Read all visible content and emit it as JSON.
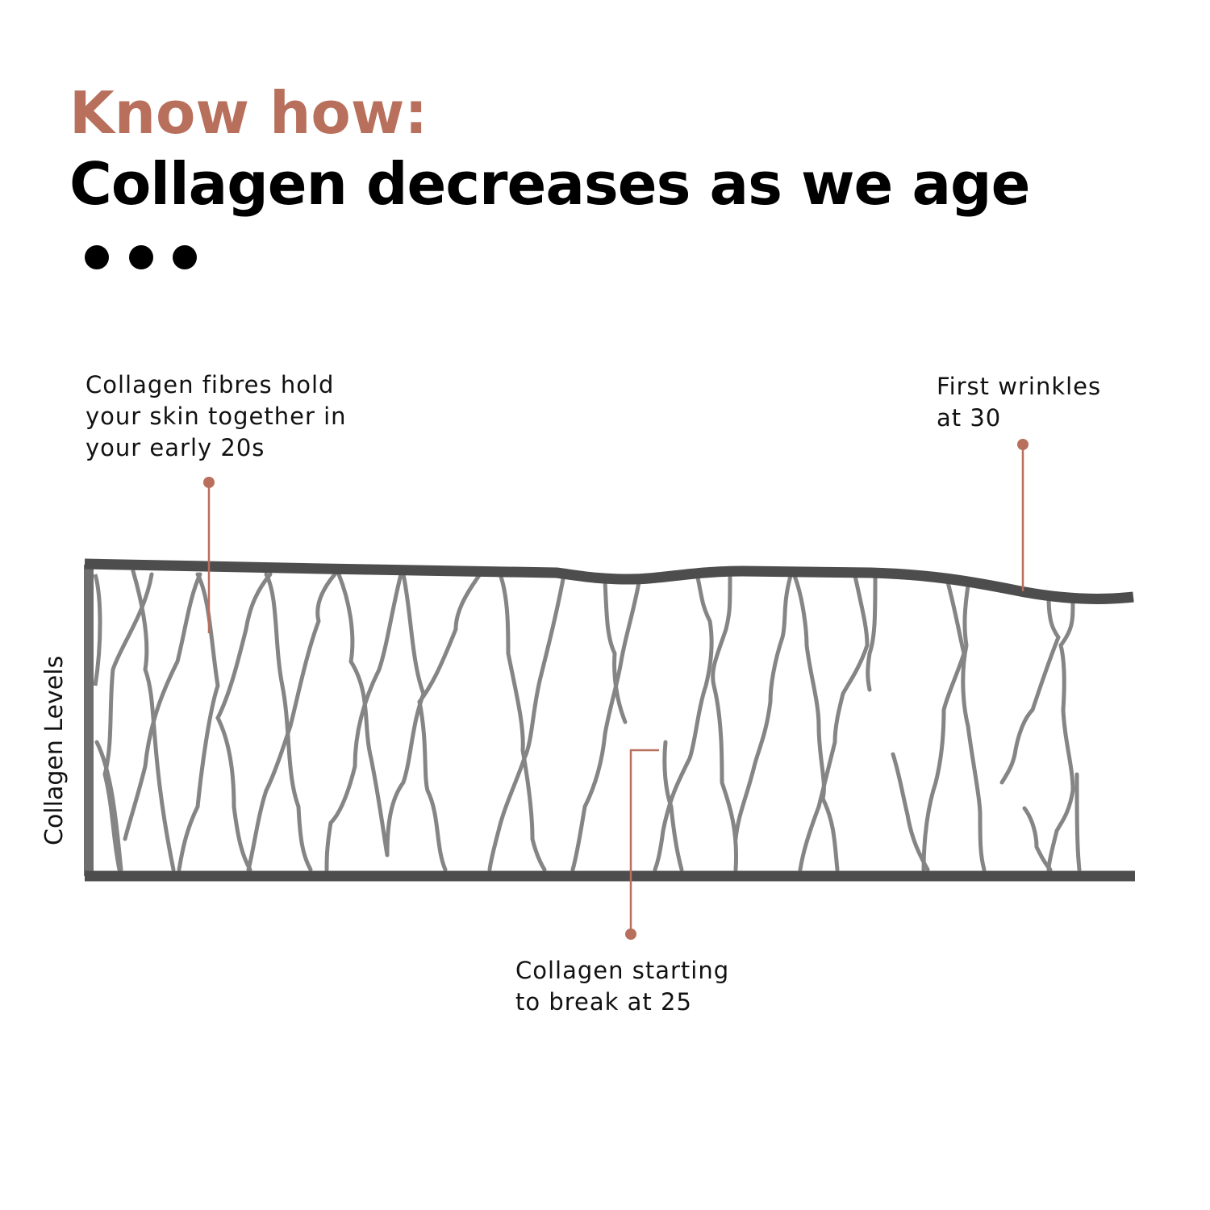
{
  "header": {
    "kicker": "Know how:",
    "title": "Collagen decreases as we age"
  },
  "diagram": {
    "y_axis_label": "Collagen Levels",
    "annotations": [
      {
        "text": "Collagen fibres hold\nyour skin together in\nyour early 20s"
      },
      {
        "text": "First wrinkles\nat 30"
      },
      {
        "text": "Collagen starting\nto break at 25"
      }
    ]
  },
  "colors": {
    "accent": "#b8705c",
    "skin_line": "#4d4d4d",
    "fibre": "#858585",
    "text": "#000000"
  }
}
